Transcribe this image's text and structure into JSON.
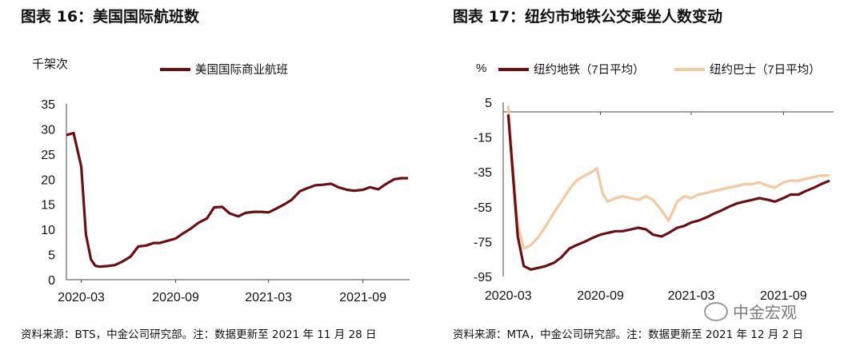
{
  "left": {
    "title": "图表 16：美国国际航班数",
    "source": "资料来源：BTS，中金公司研究部。注：数据更新至 2021 年 11 月 28 日",
    "chart_data": {
      "type": "line",
      "unit_label": "千架次",
      "ylim": [
        0,
        35
      ],
      "y_ticks": [
        "35",
        "30",
        "25",
        "20",
        "15",
        "10",
        "5",
        "0"
      ],
      "x_ticks": [
        "2020-03",
        "2020-09",
        "2021-03",
        "2021-09"
      ],
      "grid": false,
      "legend_position": "top",
      "series": [
        {
          "name": "美国国际商业航班",
          "color": "#6b0f12",
          "x": [
            "2020-02-01",
            "2020-02-15",
            "2020-03-01",
            "2020-03-10",
            "2020-03-20",
            "2020-03-28",
            "2020-04-05",
            "2020-04-20",
            "2020-05-05",
            "2020-05-20",
            "2020-06-05",
            "2020-06-20",
            "2020-07-05",
            "2020-07-20",
            "2020-08-01",
            "2020-08-15",
            "2020-09-01",
            "2020-09-15",
            "2020-10-01",
            "2020-10-15",
            "2020-11-01",
            "2020-11-15",
            "2020-12-01",
            "2020-12-15",
            "2021-01-01",
            "2021-01-15",
            "2021-02-01",
            "2021-02-15",
            "2021-03-01",
            "2021-03-15",
            "2021-04-01",
            "2021-04-15",
            "2021-05-01",
            "2021-05-15",
            "2021-06-01",
            "2021-06-15",
            "2021-07-01",
            "2021-07-15",
            "2021-08-01",
            "2021-08-15",
            "2021-09-01",
            "2021-09-15",
            "2021-10-01",
            "2021-10-15",
            "2021-11-01",
            "2021-11-15",
            "2021-11-28"
          ],
          "values": [
            28.8,
            29.2,
            22.5,
            9.0,
            4.0,
            2.8,
            2.6,
            2.7,
            2.9,
            3.6,
            4.6,
            6.6,
            6.8,
            7.3,
            7.3,
            7.7,
            8.2,
            9.2,
            10.2,
            11.3,
            12.2,
            14.4,
            14.5,
            13.2,
            12.6,
            13.3,
            13.5,
            13.5,
            13.4,
            14.1,
            15.0,
            15.9,
            17.6,
            18.2,
            18.8,
            18.9,
            19.1,
            18.4,
            17.9,
            17.7,
            17.9,
            18.4,
            18.0,
            19.0,
            20.0,
            20.2,
            20.2
          ]
        }
      ]
    }
  },
  "right": {
    "title": "图表 17：纽约市地铁公交乘坐人数变动",
    "source": "资料来源：MTA，中金公司研究部。注：数据更新至 2021 年 12 月 2 日",
    "chart_data": {
      "type": "line",
      "unit_label": "%",
      "ylim": [
        -95,
        5
      ],
      "y_ticks": [
        "5",
        "-15",
        "-35",
        "-55",
        "-75",
        "-95"
      ],
      "x_ticks": [
        "2020-03",
        "2020-09",
        "2021-03",
        "2021-09"
      ],
      "grid": false,
      "legend_position": "top",
      "series": [
        {
          "name": "纽约地铁（7日平均）",
          "color": "#6b0f12",
          "x": [
            "2020-03-01",
            "2020-03-10",
            "2020-03-20",
            "2020-04-01",
            "2020-04-15",
            "2020-05-01",
            "2020-05-15",
            "2020-06-01",
            "2020-06-15",
            "2020-07-01",
            "2020-07-15",
            "2020-08-01",
            "2020-08-15",
            "2020-09-01",
            "2020-09-15",
            "2020-10-01",
            "2020-10-15",
            "2020-11-01",
            "2020-11-15",
            "2020-12-01",
            "2020-12-15",
            "2021-01-01",
            "2021-01-15",
            "2021-02-01",
            "2021-02-15",
            "2021-03-01",
            "2021-03-15",
            "2021-04-01",
            "2021-04-15",
            "2021-05-01",
            "2021-05-15",
            "2021-06-01",
            "2021-06-15",
            "2021-07-01",
            "2021-07-15",
            "2021-08-01",
            "2021-08-15",
            "2021-09-01",
            "2021-09-15",
            "2021-10-01",
            "2021-10-15",
            "2021-11-01",
            "2021-11-15",
            "2021-12-02"
          ],
          "values": [
            -2,
            -35,
            -72,
            -89,
            -91,
            -90,
            -89,
            -87,
            -84,
            -79,
            -77,
            -75,
            -73,
            -71,
            -70,
            -69,
            -69,
            -68,
            -67,
            -68,
            -71,
            -72,
            -70,
            -67,
            -66,
            -64,
            -63,
            -61,
            -59,
            -57,
            -55,
            -53,
            -52,
            -51,
            -50,
            -51,
            -52,
            -50,
            -48,
            -48,
            -46,
            -44,
            -42,
            -40
          ]
        },
        {
          "name": "纽约巴士（7日平均）",
          "color": "#f2c9a0",
          "x": [
            "2020-03-01",
            "2020-03-10",
            "2020-03-20",
            "2020-04-01",
            "2020-04-15",
            "2020-05-01",
            "2020-05-15",
            "2020-06-01",
            "2020-06-15",
            "2020-07-01",
            "2020-07-15",
            "2020-08-01",
            "2020-08-15",
            "2020-08-25",
            "2020-09-05",
            "2020-09-15",
            "2020-10-01",
            "2020-10-15",
            "2020-11-01",
            "2020-11-15",
            "2020-12-01",
            "2020-12-15",
            "2021-01-01",
            "2021-01-15",
            "2021-02-01",
            "2021-02-15",
            "2021-03-01",
            "2021-03-15",
            "2021-04-01",
            "2021-04-15",
            "2021-05-01",
            "2021-05-15",
            "2021-06-01",
            "2021-06-15",
            "2021-07-01",
            "2021-07-15",
            "2021-08-01",
            "2021-08-15",
            "2021-09-01",
            "2021-09-15",
            "2021-10-01",
            "2021-10-15",
            "2021-11-01",
            "2021-11-15",
            "2021-12-02"
          ],
          "values": [
            3,
            -30,
            -65,
            -79,
            -77,
            -72,
            -66,
            -58,
            -52,
            -45,
            -40,
            -37,
            -35,
            -33,
            -47,
            -52,
            -50,
            -49,
            -50,
            -51,
            -49,
            -51,
            -57,
            -63,
            -52,
            -49,
            -50,
            -48,
            -47,
            -46,
            -45,
            -44,
            -43,
            -42,
            -42,
            -41,
            -43,
            -44,
            -41,
            -40,
            -40,
            -39,
            -38,
            -37,
            -37
          ]
        }
      ]
    }
  },
  "watermark": {
    "text": "中金宏观"
  }
}
